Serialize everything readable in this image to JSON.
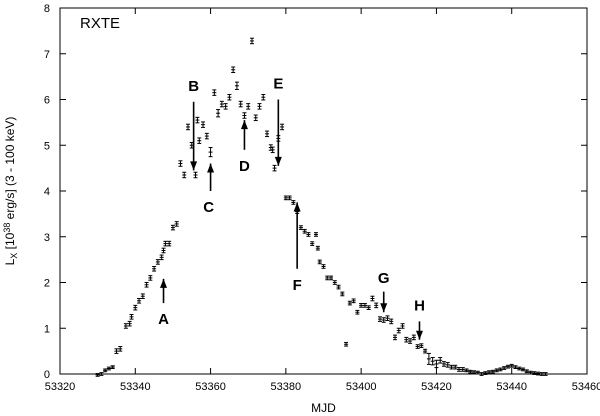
{
  "chart_data": {
    "type": "scatter",
    "panel_label": "RXTE",
    "xlabel": "MJD",
    "ylabel_parts": [
      "L",
      "X",
      " [10",
      "38",
      " erg/s] (3 - 100 keV)"
    ],
    "xlim": [
      53320,
      53460
    ],
    "ylim": [
      0,
      8
    ],
    "xticks": [
      53320,
      53340,
      53360,
      53380,
      53400,
      53420,
      53440,
      53460
    ],
    "yticks": [
      0,
      1,
      2,
      3,
      4,
      5,
      6,
      7,
      8
    ],
    "grid": false,
    "errorbars": true,
    "points": [
      [
        53330.0,
        -0.02,
        0.03
      ],
      [
        53331.0,
        0.0,
        0.03
      ],
      [
        53332.0,
        0.08,
        0.03
      ],
      [
        53333.0,
        0.12,
        0.03
      ],
      [
        53334.0,
        0.15,
        0.03
      ],
      [
        53335.0,
        0.5,
        0.05
      ],
      [
        53336.0,
        0.55,
        0.05
      ],
      [
        53337.5,
        1.05,
        0.05
      ],
      [
        53338.5,
        1.1,
        0.05
      ],
      [
        53339.0,
        1.25,
        0.05
      ],
      [
        53340.0,
        1.45,
        0.05
      ],
      [
        53341.0,
        1.6,
        0.05
      ],
      [
        53342.0,
        1.7,
        0.05
      ],
      [
        53343.0,
        1.95,
        0.05
      ],
      [
        53344.0,
        2.1,
        0.05
      ],
      [
        53345.0,
        2.3,
        0.05
      ],
      [
        53346.0,
        2.45,
        0.05
      ],
      [
        53347.0,
        2.55,
        0.05
      ],
      [
        53347.5,
        2.7,
        0.05
      ],
      [
        53348.0,
        2.85,
        0.05
      ],
      [
        53349.0,
        2.85,
        0.05
      ],
      [
        53350.0,
        3.2,
        0.05
      ],
      [
        53351.0,
        3.28,
        0.05
      ],
      [
        53352.0,
        4.6,
        0.06
      ],
      [
        53353.0,
        4.35,
        0.06
      ],
      [
        53354.0,
        5.4,
        0.06
      ],
      [
        53355.0,
        5.0,
        0.06
      ],
      [
        53356.0,
        4.35,
        0.06
      ],
      [
        53356.5,
        5.55,
        0.06
      ],
      [
        53357.0,
        5.1,
        0.06
      ],
      [
        53358.0,
        5.45,
        0.06
      ],
      [
        53359.0,
        5.2,
        0.06
      ],
      [
        53360.0,
        4.85,
        0.1
      ],
      [
        53361.0,
        6.15,
        0.06
      ],
      [
        53362.0,
        5.7,
        0.08
      ],
      [
        53363.0,
        5.9,
        0.06
      ],
      [
        53364.0,
        5.85,
        0.06
      ],
      [
        53365.0,
        6.05,
        0.06
      ],
      [
        53366.0,
        6.65,
        0.06
      ],
      [
        53367.0,
        6.3,
        0.08
      ],
      [
        53368.0,
        5.9,
        0.06
      ],
      [
        53369.0,
        5.65,
        0.06
      ],
      [
        53370.0,
        5.85,
        0.06
      ],
      [
        53371.0,
        7.28,
        0.06
      ],
      [
        53372.0,
        5.6,
        0.06
      ],
      [
        53373.0,
        5.85,
        0.06
      ],
      [
        53374.0,
        6.05,
        0.06
      ],
      [
        53375.0,
        5.25,
        0.06
      ],
      [
        53376.0,
        4.95,
        0.06
      ],
      [
        53376.5,
        4.9,
        0.06
      ],
      [
        53377.0,
        4.5,
        0.06
      ],
      [
        53378.0,
        5.15,
        0.06
      ],
      [
        53379.0,
        5.4,
        0.06
      ],
      [
        53380.0,
        3.85,
        0.04
      ],
      [
        53381.0,
        3.85,
        0.04
      ],
      [
        53382.0,
        3.75,
        0.04
      ],
      [
        53383.0,
        3.55,
        0.04
      ],
      [
        53384.0,
        3.2,
        0.04
      ],
      [
        53385.0,
        3.12,
        0.04
      ],
      [
        53386.0,
        3.05,
        0.04
      ],
      [
        53387.0,
        2.85,
        0.04
      ],
      [
        53388.0,
        3.05,
        0.04
      ],
      [
        53388.5,
        2.75,
        0.04
      ],
      [
        53389.0,
        2.45,
        0.04
      ],
      [
        53390.0,
        2.35,
        0.04
      ],
      [
        53391.0,
        2.1,
        0.04
      ],
      [
        53392.0,
        2.1,
        0.04
      ],
      [
        53393.0,
        2.0,
        0.04
      ],
      [
        53394.0,
        1.9,
        0.04
      ],
      [
        53395.0,
        1.75,
        0.04
      ],
      [
        53396.0,
        0.65,
        0.04
      ],
      [
        53397.0,
        1.55,
        0.04
      ],
      [
        53398.0,
        1.6,
        0.04
      ],
      [
        53399.0,
        1.35,
        0.04
      ],
      [
        53400.0,
        1.5,
        0.04
      ],
      [
        53401.0,
        1.5,
        0.04
      ],
      [
        53402.0,
        1.45,
        0.04
      ],
      [
        53403.0,
        1.65,
        0.05
      ],
      [
        53404.0,
        1.5,
        0.05
      ],
      [
        53405.0,
        1.2,
        0.05
      ],
      [
        53406.0,
        1.18,
        0.05
      ],
      [
        53407.0,
        1.22,
        0.05
      ],
      [
        53408.0,
        1.15,
        0.05
      ],
      [
        53409.0,
        0.8,
        0.05
      ],
      [
        53410.0,
        0.95,
        0.05
      ],
      [
        53411.0,
        1.05,
        0.05
      ],
      [
        53412.0,
        0.75,
        0.05
      ],
      [
        53413.0,
        0.72,
        0.05
      ],
      [
        53414.0,
        0.8,
        0.05
      ],
      [
        53415.0,
        0.6,
        0.04
      ],
      [
        53416.0,
        0.62,
        0.04
      ],
      [
        53417.0,
        0.5,
        0.04
      ],
      [
        53418.0,
        0.33,
        0.12
      ],
      [
        53419.0,
        0.28,
        0.08
      ],
      [
        53420.0,
        0.22,
        0.08
      ],
      [
        53421.0,
        0.3,
        0.06
      ],
      [
        53422.0,
        0.22,
        0.05
      ],
      [
        53423.0,
        0.2,
        0.05
      ],
      [
        53424.0,
        0.15,
        0.04
      ],
      [
        53425.0,
        0.15,
        0.04
      ],
      [
        53426.0,
        0.1,
        0.04
      ],
      [
        53427.0,
        0.1,
        0.04
      ],
      [
        53428.0,
        0.08,
        0.03
      ],
      [
        53429.0,
        0.05,
        0.03
      ],
      [
        53430.0,
        0.04,
        0.03
      ],
      [
        53431.0,
        0.03,
        0.03
      ],
      [
        53432.0,
        0.0,
        0.03
      ],
      [
        53433.0,
        0.02,
        0.03
      ],
      [
        53434.0,
        0.04,
        0.03
      ],
      [
        53435.0,
        0.05,
        0.03
      ],
      [
        53436.0,
        0.08,
        0.03
      ],
      [
        53437.0,
        0.1,
        0.03
      ],
      [
        53438.0,
        0.13,
        0.03
      ],
      [
        53439.0,
        0.16,
        0.03
      ],
      [
        53440.0,
        0.18,
        0.03
      ],
      [
        53441.0,
        0.15,
        0.03
      ],
      [
        53442.0,
        0.12,
        0.03
      ],
      [
        53443.0,
        0.1,
        0.03
      ],
      [
        53444.0,
        0.06,
        0.03
      ],
      [
        53445.0,
        0.03,
        0.03
      ],
      [
        53446.0,
        0.02,
        0.03
      ],
      [
        53447.0,
        0.01,
        0.03
      ],
      [
        53448.0,
        0.0,
        0.03
      ],
      [
        53449.0,
        0.0,
        0.03
      ]
    ],
    "annotations": [
      {
        "label": "A",
        "direction": "up",
        "x": 53347.5,
        "tip_y": 2.08,
        "tail_y": 1.55,
        "label_x": 53347.5,
        "label_y": 1.2
      },
      {
        "label": "B",
        "direction": "down",
        "x": 53355.5,
        "tip_y": 4.45,
        "tail_y": 5.95,
        "label_x": 53355.5,
        "label_y": 6.3
      },
      {
        "label": "C",
        "direction": "up",
        "x": 53360.0,
        "tip_y": 4.6,
        "tail_y": 4.0,
        "label_x": 53359.5,
        "label_y": 3.65
      },
      {
        "label": "D",
        "direction": "up",
        "x": 53369.0,
        "tip_y": 5.55,
        "tail_y": 4.9,
        "label_x": 53369.0,
        "label_y": 4.55
      },
      {
        "label": "E",
        "direction": "down",
        "x": 53378.0,
        "tip_y": 4.55,
        "tail_y": 6.0,
        "label_x": 53378.0,
        "label_y": 6.35
      },
      {
        "label": "F",
        "direction": "up",
        "x": 53383.0,
        "tip_y": 3.75,
        "tail_y": 2.3,
        "label_x": 53383.0,
        "label_y": 1.95
      },
      {
        "label": "G",
        "direction": "down",
        "x": 53406.0,
        "tip_y": 1.35,
        "tail_y": 1.8,
        "label_x": 53406.0,
        "label_y": 2.1
      },
      {
        "label": "H",
        "direction": "down",
        "x": 53415.5,
        "tip_y": 0.75,
        "tail_y": 1.15,
        "label_x": 53415.5,
        "label_y": 1.5
      }
    ]
  }
}
